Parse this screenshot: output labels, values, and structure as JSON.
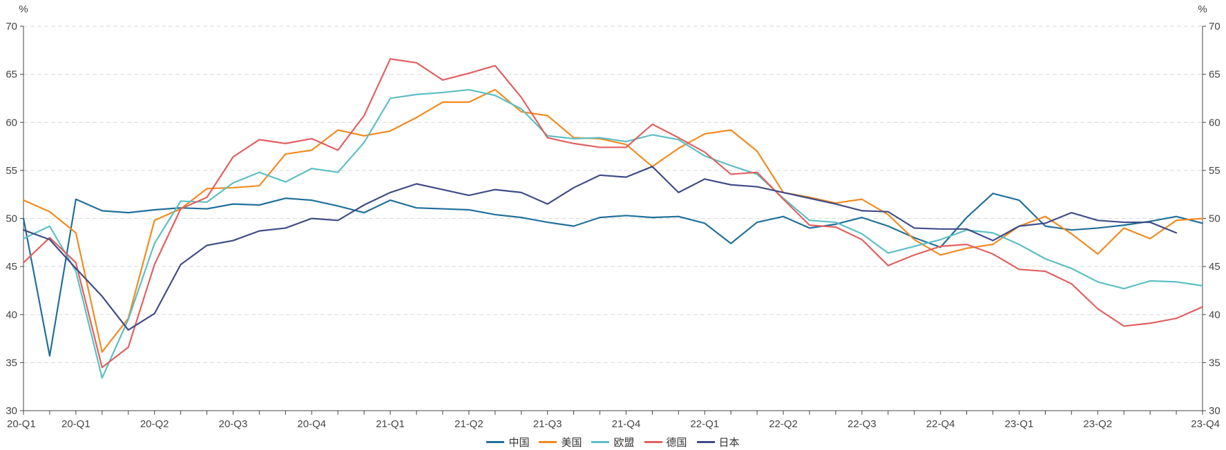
{
  "chart_data": {
    "type": "line",
    "left_unit": "%",
    "right_unit": "%",
    "ylim": [
      30,
      70
    ],
    "y_ticks": [
      30,
      35,
      40,
      45,
      50,
      55,
      60,
      65,
      70
    ],
    "x_tick_labels": [
      "20-Q1",
      "20-Q1",
      "20-Q2",
      "20-Q3",
      "20-Q4",
      "21-Q1",
      "21-Q2",
      "21-Q3",
      "21-Q4",
      "22-Q1",
      "22-Q2",
      "22-Q3",
      "22-Q4",
      "23-Q1",
      "23-Q2",
      "23-Q4"
    ],
    "x_tick_positions": [
      0,
      2,
      5,
      8,
      11,
      14,
      17,
      20,
      23,
      26,
      29,
      32,
      35,
      38,
      41,
      45
    ],
    "n_points": 46,
    "grid": true,
    "legend_position": "bottom-center",
    "series": [
      {
        "name": "中国",
        "color": "#1f6f9a",
        "values": [
          50.0,
          35.7,
          52.0,
          50.8,
          50.6,
          50.9,
          51.1,
          51.0,
          51.5,
          51.4,
          52.1,
          51.9,
          51.3,
          50.6,
          51.9,
          51.1,
          51.0,
          50.9,
          50.4,
          50.1,
          49.6,
          49.2,
          50.1,
          50.3,
          50.1,
          50.2,
          49.5,
          47.4,
          49.6,
          50.2,
          49.0,
          49.4,
          50.1,
          49.2,
          48.0,
          47.0,
          50.1,
          52.6,
          51.9,
          49.2,
          48.8,
          49.0,
          49.3,
          49.7,
          50.2,
          49.5
        ]
      },
      {
        "name": "美国",
        "color": "#f28a1d",
        "values": [
          51.9,
          50.7,
          48.5,
          36.1,
          39.6,
          49.8,
          51.0,
          53.1,
          53.2,
          53.4,
          56.7,
          57.1,
          59.2,
          58.6,
          59.1,
          60.5,
          62.1,
          62.1,
          63.4,
          61.1,
          60.7,
          58.4,
          58.3,
          57.7,
          55.4,
          57.3,
          58.8,
          59.2,
          57.0,
          52.7,
          52.2,
          51.6,
          52.0,
          50.4,
          47.8,
          46.2,
          46.9,
          47.3,
          49.2,
          50.2,
          48.4,
          46.3,
          49.0,
          47.9,
          49.8,
          50.0
        ]
      },
      {
        "name": "欧盟",
        "color": "#5bbfc4",
        "values": [
          47.9,
          49.2,
          44.5,
          33.4,
          39.5,
          47.4,
          51.8,
          51.7,
          53.7,
          54.8,
          53.8,
          55.2,
          54.8,
          57.9,
          62.5,
          62.9,
          63.1,
          63.4,
          62.8,
          61.4,
          58.6,
          58.3,
          58.4,
          58.0,
          58.7,
          58.2,
          56.5,
          55.5,
          54.6,
          52.1,
          49.8,
          49.6,
          48.4,
          46.4,
          47.1,
          47.8,
          48.8,
          48.5,
          47.3,
          45.8,
          44.8,
          43.4,
          42.7,
          43.5,
          43.4,
          43.0
        ]
      },
      {
        "name": "德国",
        "color": "#e15f5f",
        "values": [
          45.4,
          48.0,
          45.4,
          34.5,
          36.6,
          45.2,
          51.0,
          52.2,
          56.4,
          58.2,
          57.8,
          58.3,
          57.1,
          60.7,
          66.6,
          66.2,
          64.4,
          65.1,
          65.9,
          62.6,
          58.4,
          57.8,
          57.4,
          57.4,
          59.8,
          58.4,
          56.9,
          54.6,
          54.8,
          52.0,
          49.3,
          49.1,
          47.8,
          45.1,
          46.2,
          47.1,
          47.3,
          46.3,
          44.7,
          44.5,
          43.2,
          40.6,
          38.8,
          39.1,
          39.6,
          40.8
        ]
      },
      {
        "name": "日本",
        "color": "#3f4c86",
        "values": [
          48.8,
          47.8,
          44.8,
          41.9,
          38.4,
          40.1,
          45.2,
          47.2,
          47.7,
          48.7,
          49.0,
          50.0,
          49.8,
          51.4,
          52.7,
          53.6,
          53.0,
          52.4,
          53.0,
          52.7,
          51.5,
          53.2,
          54.5,
          54.3,
          55.4,
          52.7,
          54.1,
          53.5,
          53.3,
          52.7,
          52.1,
          51.5,
          50.8,
          50.7,
          49.0,
          48.9,
          48.9,
          47.7,
          49.2,
          49.5,
          50.6,
          49.8,
          49.6,
          49.6,
          48.5,
          null
        ]
      }
    ]
  }
}
